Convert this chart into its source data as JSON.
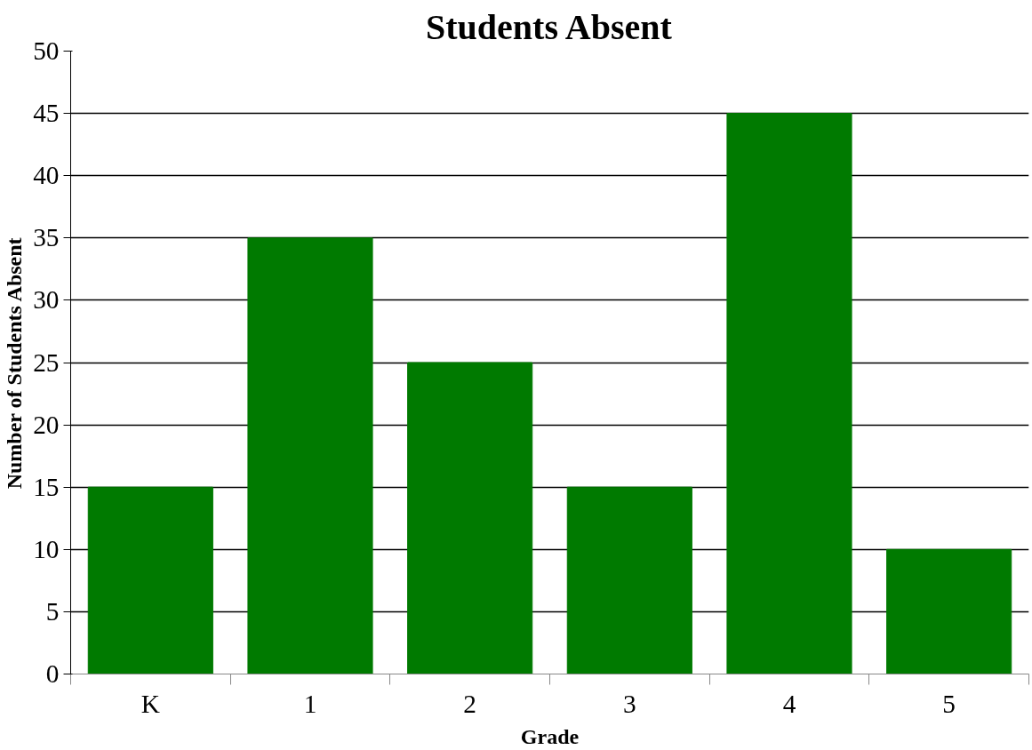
{
  "chart_data": {
    "type": "bar",
    "title": "Students Absent",
    "xlabel": "Grade",
    "ylabel": "Number of Students Absent",
    "categories": [
      "K",
      "1",
      "2",
      "3",
      "4",
      "5"
    ],
    "values": [
      15,
      35,
      25,
      15,
      45,
      10
    ],
    "color": "#007a00",
    "ylim": [
      0,
      50
    ],
    "yticks": [
      0,
      5,
      10,
      15,
      20,
      25,
      30,
      35,
      40,
      45,
      50
    ],
    "grid": "y"
  }
}
